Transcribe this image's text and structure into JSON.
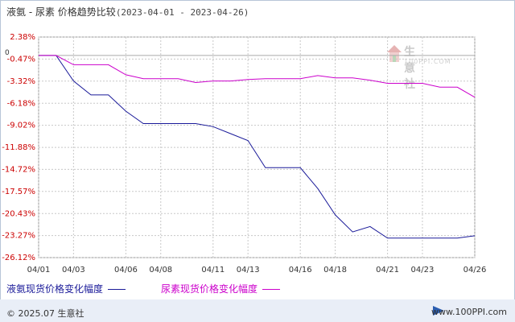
{
  "title": {
    "series_names": "液氨 - 尿素",
    "subtitle": "价格趋势比较",
    "date_range": "(2023-04-01 - 2023-04-26)"
  },
  "watermark": {
    "name": "生意社",
    "url": "100PPI.COM"
  },
  "footer": {
    "copyright": "© 2025.07 生意社",
    "site": "www.100PPI.com"
  },
  "colors": {
    "series1": "#1a1a99",
    "series2": "#cc00cc",
    "ytick": "#cc0000",
    "grid": "#c8c8c8",
    "zero": "#aaaaaa"
  },
  "chart_data": {
    "type": "line",
    "xlim": [
      "2023-04-01",
      "2023-04-26"
    ],
    "ylim": [
      -26.12,
      2.38
    ],
    "grid": true,
    "legend": "bottom",
    "y_ticks": [
      "2.38%",
      "-0.47%",
      "-3.32%",
      "-6.18%",
      "-9.02%",
      "-11.88%",
      "-14.72%",
      "-17.57%",
      "-20.43%",
      "-23.27%",
      "-26.12%"
    ],
    "y_tick_values": [
      2.38,
      -0.47,
      -3.32,
      -6.18,
      -9.02,
      -11.88,
      -14.72,
      -17.57,
      -20.43,
      -23.27,
      -26.12
    ],
    "zero_label": "0",
    "x_ticks": [
      "04/01",
      "04/03",
      "04/06",
      "04/08",
      "04/11",
      "04/13",
      "04/16",
      "04/18",
      "04/21",
      "04/23",
      "04/26"
    ],
    "x_tick_dates": [
      "2023-04-01",
      "2023-04-03",
      "2023-04-06",
      "2023-04-08",
      "2023-04-11",
      "2023-04-13",
      "2023-04-16",
      "2023-04-18",
      "2023-04-21",
      "2023-04-23",
      "2023-04-26"
    ],
    "series": [
      {
        "name": "液氨现货价格变化幅度",
        "color": "#1a1a99",
        "points": [
          [
            "2023-04-01",
            0
          ],
          [
            "2023-04-02",
            0
          ],
          [
            "2023-04-03",
            -3.3
          ],
          [
            "2023-04-04",
            -5.1
          ],
          [
            "2023-04-05",
            -5.1
          ],
          [
            "2023-04-06",
            -7.2
          ],
          [
            "2023-04-07",
            -8.8
          ],
          [
            "2023-04-08",
            -8.8
          ],
          [
            "2023-04-09",
            -8.8
          ],
          [
            "2023-04-10",
            -8.8
          ],
          [
            "2023-04-11",
            -9.2
          ],
          [
            "2023-04-12",
            -10.1
          ],
          [
            "2023-04-13",
            -11.0
          ],
          [
            "2023-04-14",
            -14.5
          ],
          [
            "2023-04-15",
            -14.5
          ],
          [
            "2023-04-16",
            -14.5
          ],
          [
            "2023-04-17",
            -17.2
          ],
          [
            "2023-04-18",
            -20.6
          ],
          [
            "2023-04-19",
            -22.8
          ],
          [
            "2023-04-20",
            -22.1
          ],
          [
            "2023-04-21",
            -23.6
          ],
          [
            "2023-04-22",
            -23.6
          ],
          [
            "2023-04-23",
            -23.6
          ],
          [
            "2023-04-24",
            -23.6
          ],
          [
            "2023-04-25",
            -23.6
          ],
          [
            "2023-04-26",
            -23.3
          ]
        ]
      },
      {
        "name": "尿素现货价格变化幅度",
        "color": "#cc00cc",
        "points": [
          [
            "2023-04-01",
            0
          ],
          [
            "2023-04-02",
            0
          ],
          [
            "2023-04-03",
            -1.2
          ],
          [
            "2023-04-04",
            -1.2
          ],
          [
            "2023-04-05",
            -1.2
          ],
          [
            "2023-04-06",
            -2.5
          ],
          [
            "2023-04-07",
            -3.0
          ],
          [
            "2023-04-08",
            -3.0
          ],
          [
            "2023-04-09",
            -3.0
          ],
          [
            "2023-04-10",
            -3.5
          ],
          [
            "2023-04-11",
            -3.3
          ],
          [
            "2023-04-12",
            -3.3
          ],
          [
            "2023-04-13",
            -3.1
          ],
          [
            "2023-04-14",
            -3.0
          ],
          [
            "2023-04-15",
            -3.0
          ],
          [
            "2023-04-16",
            -3.0
          ],
          [
            "2023-04-17",
            -2.6
          ],
          [
            "2023-04-18",
            -2.9
          ],
          [
            "2023-04-19",
            -2.9
          ],
          [
            "2023-04-20",
            -3.2
          ],
          [
            "2023-04-21",
            -3.6
          ],
          [
            "2023-04-22",
            -3.6
          ],
          [
            "2023-04-23",
            -3.6
          ],
          [
            "2023-04-24",
            -4.1
          ],
          [
            "2023-04-25",
            -4.1
          ],
          [
            "2023-04-26",
            -5.4
          ]
        ]
      }
    ]
  }
}
